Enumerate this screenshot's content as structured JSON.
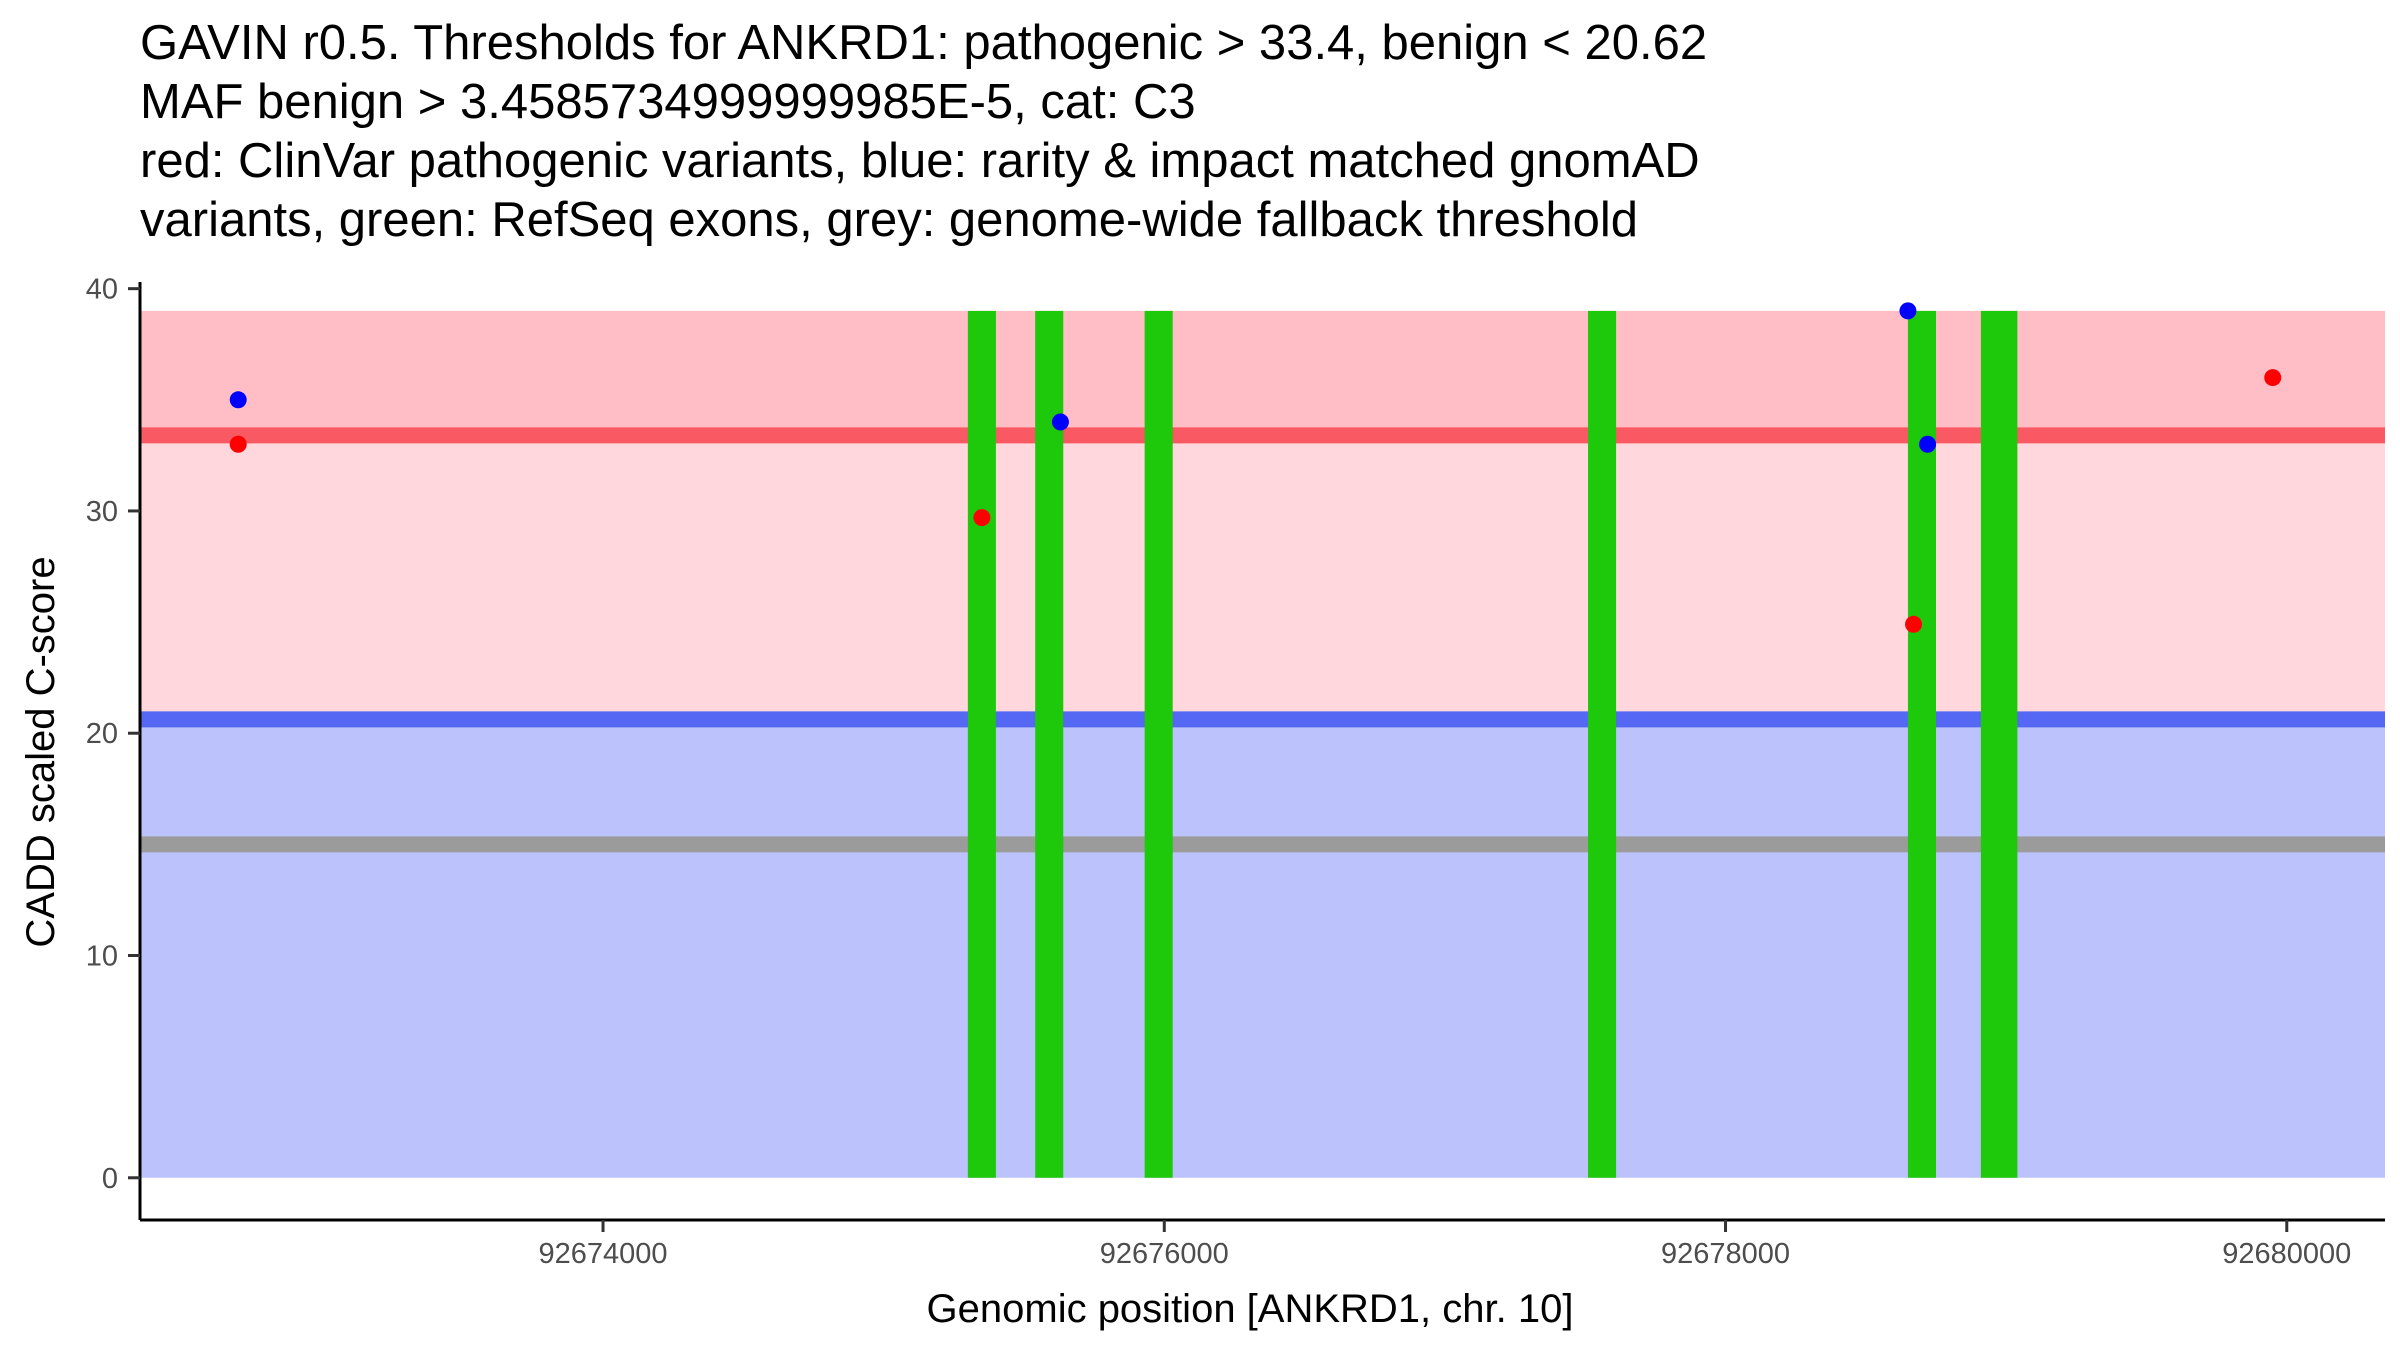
{
  "chart_data": {
    "type": "scatter",
    "title_lines": [
      "GAVIN r0.5. Thresholds for ANKRD1: pathogenic > 33.4, benign < 20.62",
      "MAF benign > 3.4585734999999985E-5, cat: C3",
      "red: ClinVar pathogenic variants, blue: rarity & impact matched gnomAD",
      "variants, green: RefSeq exons, grey: genome-wide fallback threshold"
    ],
    "xlabel": "Genomic position [ANKRD1, chr. 10]",
    "ylabel": "CADD scaled C-score",
    "xlim": [
      92672350,
      92680350
    ],
    "ylim": [
      -1.9,
      40.3
    ],
    "x_ticks": [
      92674000,
      92676000,
      92678000,
      92680000
    ],
    "x_tick_labels": [
      "92674000",
      "92676000",
      "92678000",
      "92680000"
    ],
    "y_ticks": [
      0,
      10,
      20,
      30,
      40
    ],
    "y_tick_labels": [
      "0",
      "10",
      "20",
      "30",
      "40"
    ],
    "grid": false,
    "thresholds": {
      "pathogenic": 33.4,
      "benign": 20.62,
      "fallback": 15
    },
    "bands": [
      {
        "name": "pathogenic-zone",
        "ymin": 33.4,
        "ymax": 39,
        "color": "#ffbec5"
      },
      {
        "name": "uncertain-zone",
        "ymin": 20.62,
        "ymax": 33.4,
        "color": "#ffd7dc"
      },
      {
        "name": "benign-zone",
        "ymin": 0,
        "ymax": 20.62,
        "color": "#bcc2fb"
      }
    ],
    "threshold_lines": [
      {
        "name": "pathogenic-threshold",
        "y": 33.4,
        "color": "#f95962"
      },
      {
        "name": "benign-threshold",
        "y": 20.62,
        "color": "#5468f4"
      },
      {
        "name": "fallback-threshold",
        "y": 15,
        "color": "#9b9b9b"
      }
    ],
    "exons": [
      {
        "start": 92675300,
        "end": 92675400
      },
      {
        "start": 92675540,
        "end": 92675640
      },
      {
        "start": 92675930,
        "end": 92676030
      },
      {
        "start": 92677510,
        "end": 92677610
      },
      {
        "start": 92678650,
        "end": 92678750
      },
      {
        "start": 92678910,
        "end": 92679040
      }
    ],
    "exon_ymax": 39,
    "exon_color": "#1ec80a",
    "series": [
      {
        "name": "ClinVar pathogenic",
        "color": "#ff0000",
        "points": [
          [
            92672700,
            33
          ],
          [
            92675350,
            29.7
          ],
          [
            92678670,
            24.9
          ],
          [
            92679950,
            36
          ]
        ]
      },
      {
        "name": "gnomAD",
        "color": "#0000ff",
        "points": [
          [
            92672700,
            35
          ],
          [
            92675630,
            34
          ],
          [
            92678650,
            39
          ],
          [
            92678720,
            33
          ]
        ]
      }
    ]
  }
}
